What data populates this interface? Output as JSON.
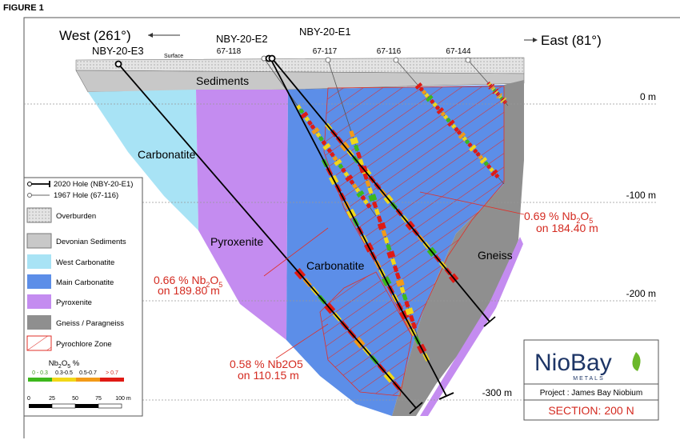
{
  "figure_label": "FIGURE 1",
  "directions": {
    "west": "West (261°)",
    "east": "East (81°)"
  },
  "holes_2020": [
    "NBY-20-E3",
    "NBY-20-E2",
    "NBY-20-E1"
  ],
  "surface_label": "Surface",
  "holes_1967": [
    "67-118",
    "67-117",
    "67-116",
    "67-144"
  ],
  "units": {
    "sediments": "Sediments",
    "carbonatite_west": "Carbonatite",
    "pyroxenite": "Pyroxenite",
    "carbonatite_main": "Carbonatite",
    "gneiss": "Gneiss"
  },
  "depth_labels": [
    "0 m",
    "-100 m",
    "-200 m",
    "-300 m"
  ],
  "intercepts": [
    {
      "grade": "0.69 % Nb",
      "sub1": "2",
      "mid": "O",
      "sub2": "5",
      "length": "on 184.40 m"
    },
    {
      "grade": "0.66 % Nb",
      "sub1": "2",
      "mid": "O",
      "sub2": "5",
      "length": "on 189.80 m"
    },
    {
      "grade": "0.58 % Nb2O5",
      "length": "on 110.15 m"
    }
  ],
  "legend": {
    "items": [
      "2020 Hole (NBY-20-E1)",
      "1967 Hole (67-116)",
      "Overburden",
      "Devonian Sediments",
      "West Carbonatite",
      "Main Carbonatite",
      "Pyroxenite",
      "Gneiss / Paragneiss",
      "Pyrochlore Zone"
    ],
    "grade_title": {
      "text": "Nb",
      "sub1": "2",
      "mid": "O",
      "sub2": "5",
      "unit": " %"
    },
    "grade_classes": [
      "0 - 0.3",
      "0.3-0.5",
      "0.5-0.7",
      "> 0.7"
    ],
    "scale_bar": [
      "0",
      "25",
      "50",
      "75",
      "100 m"
    ]
  },
  "logo": {
    "name": "NioBay",
    "tagline": "METALS"
  },
  "project": "Project : James Bay Niobium",
  "section": "SECTION: 200 N"
}
